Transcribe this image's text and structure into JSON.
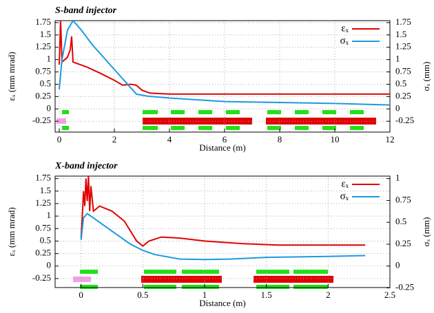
{
  "chart_data": [
    {
      "type": "line",
      "title": "S-band injector",
      "xlabel": "Distance (m)",
      "ylabel": "εₓ (mm mrad)",
      "y2label": "σₓ (mm)",
      "xlim": [
        -0.15,
        12
      ],
      "xticks": [
        0,
        2,
        4,
        6,
        8,
        10,
        12
      ],
      "ylim": [
        -0.47,
        1.79
      ],
      "yticks": [
        -0.25,
        0,
        0.25,
        0.5,
        0.75,
        1,
        1.25,
        1.5,
        1.75
      ],
      "y2lim": [
        -0.47,
        1.79
      ],
      "y2ticks": [
        -0.25,
        0,
        0.25,
        0.5,
        0.75,
        1,
        1.25,
        1.5,
        1.75
      ],
      "grid": true,
      "legend": "top-right",
      "series": [
        {
          "name": "εₓ",
          "color": "#e00000",
          "axis": "y",
          "x": [
            0,
            0.05,
            0.1,
            0.2,
            0.3,
            0.4,
            0.45,
            0.5,
            1,
            1.5,
            2,
            2.3,
            2.6,
            2.8,
            3,
            3.3,
            4,
            6,
            8,
            10,
            12
          ],
          "values": [
            0.9,
            1.79,
            0.95,
            1.0,
            1.05,
            1.2,
            1.47,
            0.95,
            0.85,
            0.72,
            0.58,
            0.48,
            0.5,
            0.48,
            0.38,
            0.32,
            0.3,
            0.3,
            0.3,
            0.3,
            0.3
          ]
        },
        {
          "name": "σₓ",
          "color": "#1a9ae0",
          "axis": "y2",
          "x": [
            0,
            0.1,
            0.3,
            0.5,
            0.8,
            1.2,
            1.6,
            2,
            2.4,
            2.8,
            3.2,
            4,
            6,
            8,
            10,
            12
          ],
          "values": [
            0.4,
            1.0,
            1.6,
            1.79,
            1.6,
            1.3,
            1.05,
            0.8,
            0.55,
            0.3,
            0.26,
            0.22,
            0.15,
            0.13,
            0.11,
            0.08
          ]
        }
      ]
    },
    {
      "type": "line",
      "title": "X-band injector",
      "xlabel": "Distance (m)",
      "ylabel": "εₓ (mm mrad)",
      "y2label": "σₓ (mm)",
      "xlim": [
        -0.21,
        2.5
      ],
      "xticks": [
        0,
        0.5,
        1,
        1.5,
        2,
        2.5
      ],
      "ylim": [
        -0.43,
        1.8
      ],
      "yticks": [
        -0.25,
        0,
        0.25,
        0.5,
        0.75,
        1,
        1.25,
        1.5,
        1.75
      ],
      "y2lim": [
        -0.2457,
        1.0286
      ],
      "y2ticks": [
        -0.25,
        0,
        0.25,
        0.5,
        0.75,
        1
      ],
      "grid": true,
      "legend": "top-right",
      "series": [
        {
          "name": "εₓ",
          "color": "#e00000",
          "axis": "y",
          "x": [
            0,
            0.01,
            0.02,
            0.03,
            0.04,
            0.05,
            0.06,
            0.07,
            0.08,
            0.1,
            0.15,
            0.25,
            0.35,
            0.45,
            0.5,
            0.55,
            0.65,
            0.8,
            1,
            1.3,
            1.6,
            2,
            2.3
          ],
          "values": [
            0.55,
            1.0,
            1.5,
            1.2,
            1.75,
            1.3,
            1.8,
            1.1,
            1.6,
            1.1,
            1.2,
            1.1,
            0.9,
            0.5,
            0.4,
            0.5,
            0.58,
            0.56,
            0.5,
            0.45,
            0.42,
            0.42,
            0.42
          ]
        },
        {
          "name": "σₓ",
          "color": "#1a9ae0",
          "axis": "y2",
          "x": [
            0,
            0.02,
            0.05,
            0.1,
            0.2,
            0.3,
            0.4,
            0.5,
            0.6,
            0.8,
            1.0,
            1.2,
            1.5,
            2,
            2.3
          ],
          "values": [
            0.3,
            0.55,
            0.6,
            0.55,
            0.45,
            0.35,
            0.25,
            0.18,
            0.13,
            0.08,
            0.075,
            0.08,
            0.1,
            0.11,
            0.12
          ]
        }
      ]
    }
  ]
}
